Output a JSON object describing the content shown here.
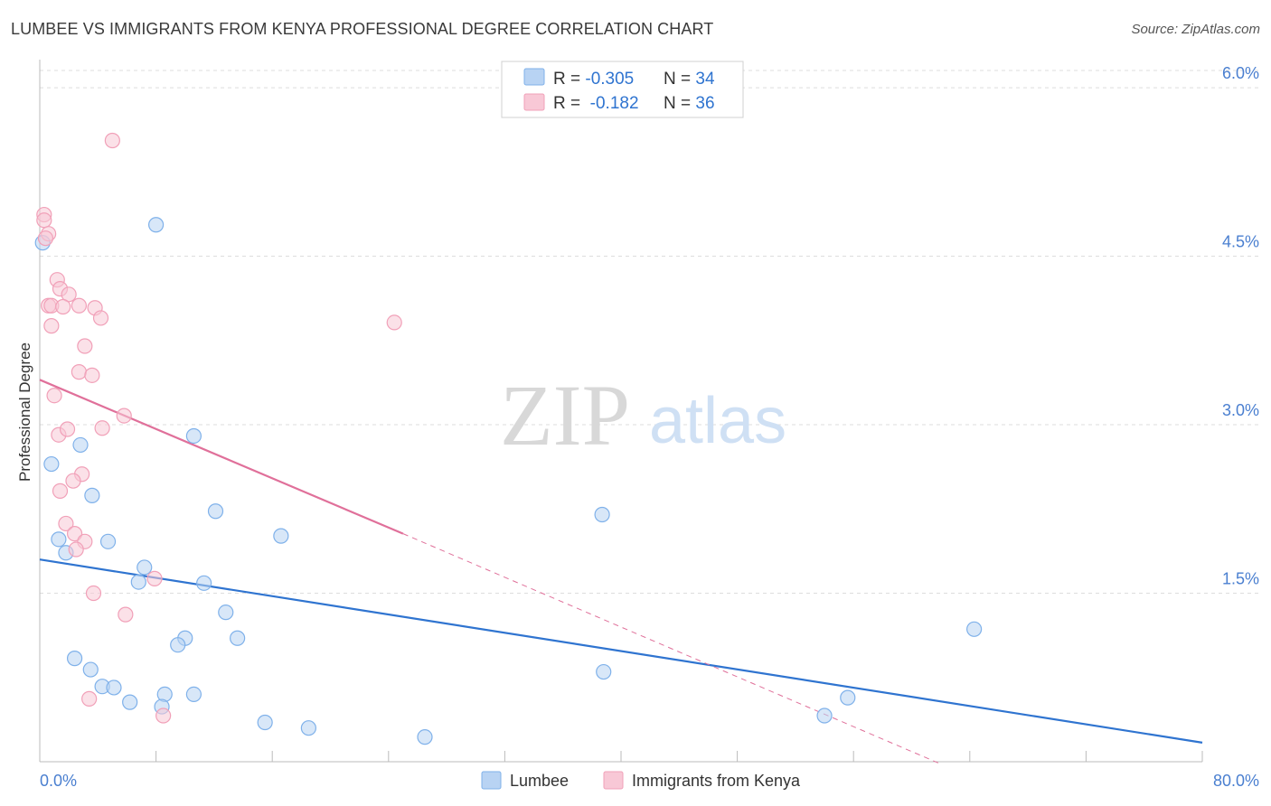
{
  "header": {
    "title": "LUMBEE VS IMMIGRANTS FROM KENYA PROFESSIONAL DEGREE CORRELATION CHART",
    "source": "Source: ZipAtlas.com"
  },
  "watermark": {
    "zip": "ZIP",
    "atlas": "atlas"
  },
  "legend": {
    "rows": [
      {
        "r_label": "R = ",
        "r_value": "-0.305",
        "n_label": "N = ",
        "n_value": "34"
      },
      {
        "r_label": "R = ",
        "r_value": " -0.182",
        "n_label": "N = ",
        "n_value": "36"
      }
    ]
  },
  "colors": {
    "lumbee": "#7fb1ea",
    "lumbee_fill": "#b8d3f3",
    "lumbee_line": "#2f74d0",
    "kenya": "#f1a0b8",
    "kenya_fill": "#f8c8d6",
    "kenya_line": "#e0709a",
    "axis_text": "#4a7fd0",
    "grid": "#dddddd"
  },
  "chart_data": {
    "type": "scatter",
    "title": "LUMBEE VS IMMIGRANTS FROM KENYA PROFESSIONAL DEGREE CORRELATION CHART",
    "xlabel": "",
    "ylabel": "Professional Degree",
    "xlim": [
      0,
      80
    ],
    "ylim": [
      0,
      6.25
    ],
    "x_tick_labels": [
      "0.0%",
      "80.0%"
    ],
    "y_ticks": [
      1.5,
      3.0,
      4.5,
      6.0
    ],
    "y_tick_labels": [
      "1.5%",
      "3.0%",
      "4.5%",
      "6.0%"
    ],
    "grid": true,
    "legend_position": "top-center",
    "series": [
      {
        "name": "Lumbee",
        "r": -0.305,
        "n": 34,
        "trend": {
          "x": [
            0,
            80
          ],
          "y": [
            1.8,
            0.17
          ]
        },
        "points": [
          [
            0.2,
            4.62
          ],
          [
            8.0,
            4.78
          ],
          [
            0.8,
            2.65
          ],
          [
            2.8,
            2.82
          ],
          [
            10.6,
            2.9
          ],
          [
            3.6,
            2.37
          ],
          [
            12.1,
            2.23
          ],
          [
            1.3,
            1.98
          ],
          [
            4.7,
            1.96
          ],
          [
            16.6,
            2.01
          ],
          [
            1.8,
            1.86
          ],
          [
            7.2,
            1.73
          ],
          [
            6.8,
            1.6
          ],
          [
            11.3,
            1.59
          ],
          [
            12.8,
            1.33
          ],
          [
            10.0,
            1.1
          ],
          [
            9.5,
            1.04
          ],
          [
            13.6,
            1.1
          ],
          [
            2.4,
            0.92
          ],
          [
            3.5,
            0.82
          ],
          [
            4.3,
            0.67
          ],
          [
            5.1,
            0.66
          ],
          [
            6.2,
            0.53
          ],
          [
            8.6,
            0.6
          ],
          [
            10.6,
            0.6
          ],
          [
            8.4,
            0.49
          ],
          [
            15.5,
            0.35
          ],
          [
            18.5,
            0.3
          ],
          [
            26.5,
            0.22
          ],
          [
            38.7,
            2.2
          ],
          [
            38.8,
            0.8
          ],
          [
            64.3,
            1.18
          ],
          [
            55.6,
            0.57
          ],
          [
            54.0,
            0.41
          ]
        ]
      },
      {
        "name": "Immigrants from Kenya",
        "r": -0.182,
        "n": 36,
        "trend": {
          "x": [
            0,
            25
          ],
          "y": [
            3.4,
            2.03
          ]
        },
        "trend_dashed": {
          "x": [
            25,
            62
          ],
          "y": [
            2.03,
            -0.02
          ]
        },
        "points": [
          [
            5.0,
            5.53
          ],
          [
            0.3,
            4.87
          ],
          [
            0.3,
            4.82
          ],
          [
            0.6,
            4.7
          ],
          [
            0.4,
            4.66
          ],
          [
            1.2,
            4.29
          ],
          [
            1.4,
            4.21
          ],
          [
            2.0,
            4.16
          ],
          [
            0.6,
            4.06
          ],
          [
            0.8,
            4.06
          ],
          [
            1.6,
            4.05
          ],
          [
            2.7,
            4.06
          ],
          [
            3.8,
            4.04
          ],
          [
            4.2,
            3.95
          ],
          [
            0.8,
            3.88
          ],
          [
            24.4,
            3.91
          ],
          [
            3.1,
            3.7
          ],
          [
            2.7,
            3.47
          ],
          [
            3.6,
            3.44
          ],
          [
            1.0,
            3.26
          ],
          [
            5.8,
            3.08
          ],
          [
            1.3,
            2.91
          ],
          [
            1.9,
            2.96
          ],
          [
            4.3,
            2.97
          ],
          [
            2.9,
            2.56
          ],
          [
            2.3,
            2.5
          ],
          [
            1.4,
            2.41
          ],
          [
            1.8,
            2.12
          ],
          [
            2.4,
            2.03
          ],
          [
            3.1,
            1.96
          ],
          [
            2.5,
            1.89
          ],
          [
            7.9,
            1.63
          ],
          [
            3.7,
            1.5
          ],
          [
            5.9,
            1.31
          ],
          [
            3.4,
            0.56
          ],
          [
            8.5,
            0.41
          ]
        ]
      }
    ]
  },
  "bottom_legend": {
    "items": [
      {
        "label": "Lumbee"
      },
      {
        "label": "Immigrants from Kenya"
      }
    ]
  }
}
